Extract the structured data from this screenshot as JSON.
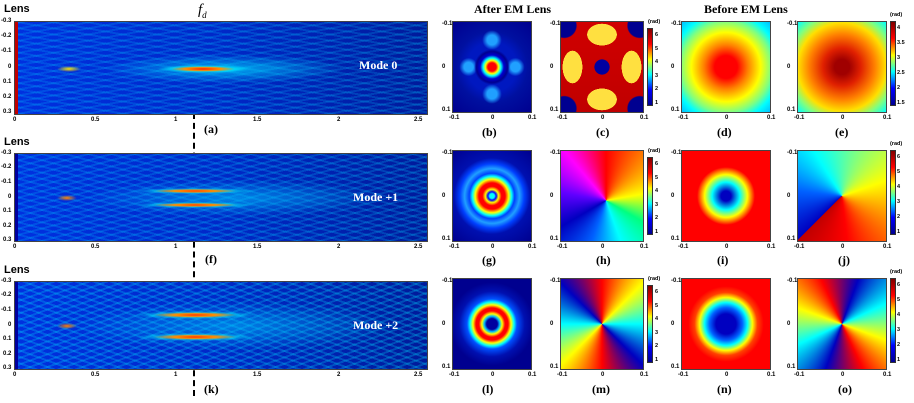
{
  "figure": {
    "fd_label": "f",
    "fd_sub": "d",
    "header_after": "After EM Lens",
    "header_before": "Before EM Lens",
    "lens_label": "Lens",
    "strip_y_ticks": [
      "-0.3",
      "-0.2",
      "-0.1",
      "0",
      "0.1",
      "0.2",
      "0.3"
    ],
    "strip_x_ticks": [
      "0",
      "0.5",
      "1",
      "1.5",
      "2",
      "2.5"
    ],
    "panel_ticks": [
      "-0.1",
      "0",
      "0.1"
    ],
    "colorbar_unit": "(rad)",
    "rows": [
      {
        "mode": "Mode 0",
        "strip_caption": "(a)",
        "panels": [
          "(b)",
          "(c)",
          "(d)",
          "(e)"
        ],
        "cbar_c": [
          "6",
          "5",
          "4",
          "3",
          "2",
          "1"
        ],
        "cbar_e": [
          "4",
          "3.5",
          "3",
          "2.5",
          "2",
          "1.5"
        ]
      },
      {
        "mode": "Mode +1",
        "strip_caption": "(f)",
        "panels": [
          "(g)",
          "(h)",
          "(i)",
          "(j)"
        ],
        "cbar_c": [
          "6",
          "5",
          "4",
          "3",
          "2",
          "1"
        ],
        "cbar_e": [
          "6",
          "5",
          "4",
          "3",
          "2",
          "1"
        ]
      },
      {
        "mode": "Mode +2",
        "strip_caption": "(k)",
        "panels": [
          "(l)",
          "(m)",
          "(n)",
          "(o)"
        ],
        "cbar_c": [
          "6",
          "5",
          "4",
          "3",
          "2",
          "1"
        ],
        "cbar_e": [
          "6",
          "5",
          "4",
          "3",
          "2",
          "1"
        ]
      }
    ]
  },
  "colors": {
    "field_bg": "#0a2fd0",
    "hot": "#ff2000",
    "dark_blue": "#00008f"
  }
}
